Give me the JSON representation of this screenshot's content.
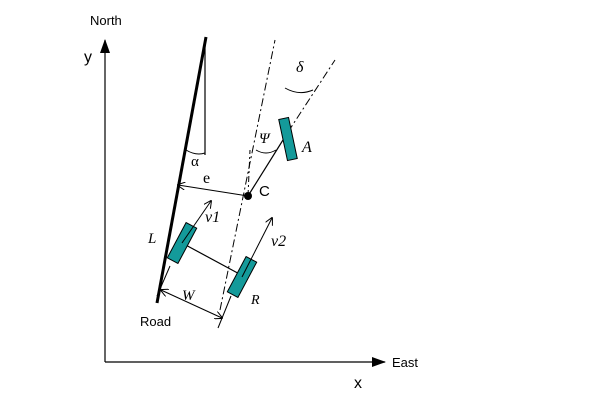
{
  "diagram": {
    "labels": {
      "north": "North",
      "y_axis": "y",
      "east": "East",
      "x_axis": "x",
      "road": "Road",
      "alpha": "α",
      "e": "e",
      "c": "C",
      "psi": "Ψ",
      "delta": "δ",
      "a": "A",
      "v1": "v1",
      "v2": "v2",
      "l": "L",
      "r": "R",
      "w": "W"
    },
    "colors": {
      "wheel_fill": "#149a9a",
      "line": "#000000"
    }
  }
}
